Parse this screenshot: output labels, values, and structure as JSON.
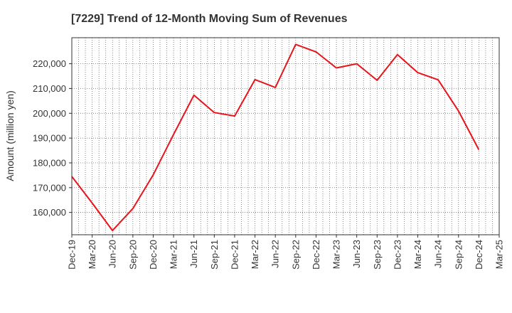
{
  "chart_data": {
    "type": "line",
    "title": "[7229]  Trend of 12-Month Moving Sum of Revenues",
    "xlabel": "",
    "ylabel": "Amount (million yen)",
    "categories": [
      "Dec-19",
      "Mar-20",
      "Jun-20",
      "Sep-20",
      "Dec-20",
      "Mar-21",
      "Jun-21",
      "Sep-21",
      "Dec-21",
      "Mar-22",
      "Jun-22",
      "Sep-22",
      "Dec-22",
      "Mar-23",
      "Jun-23",
      "Sep-23",
      "Dec-23",
      "Mar-24",
      "Jun-24",
      "Sep-24",
      "Dec-24",
      "Mar-25"
    ],
    "series": [
      {
        "color": "#e8141b",
        "values": [
          174500,
          163800,
          152700,
          161600,
          175200,
          191500,
          207300,
          200300,
          198900,
          213600,
          210400,
          227800,
          224800,
          218300,
          220000,
          213300,
          223700,
          216400,
          213500,
          200900,
          185300,
          null
        ]
      }
    ],
    "ylim": [
      151000,
      230500
    ],
    "yticks": [
      160000,
      170000,
      180000,
      190000,
      200000,
      210000,
      220000
    ],
    "ytick_labels": [
      "160,000",
      "170,000",
      "180,000",
      "190,000",
      "200,000",
      "210,000",
      "220,000"
    ],
    "grid": true
  }
}
